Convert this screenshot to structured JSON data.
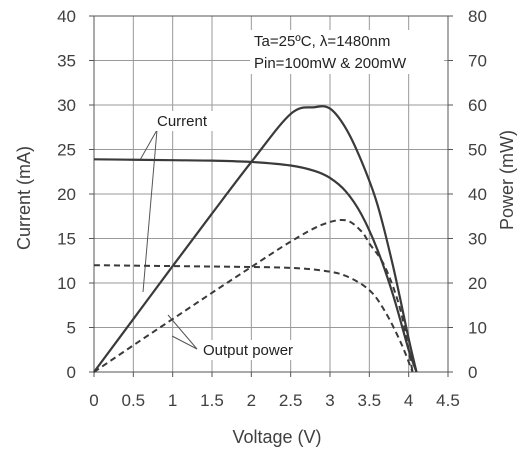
{
  "chart_data": {
    "type": "line",
    "xlabel": "Voltage (V)",
    "ylabel_left": "Current (mA)",
    "ylabel_right": "Power (mW)",
    "xlim": [
      0,
      4.5
    ],
    "ylim_left": [
      0,
      40
    ],
    "ylim_right": [
      0,
      80
    ],
    "x_ticks": [
      "0",
      "0.5",
      "1",
      "1.5",
      "2",
      "2.5",
      "3",
      "3.5",
      "4",
      "4.5"
    ],
    "y_left_ticks": [
      "0",
      "5",
      "10",
      "15",
      "20",
      "25",
      "30",
      "35",
      "40"
    ],
    "y_right_ticks": [
      "0",
      "10",
      "20",
      "30",
      "40",
      "50",
      "60",
      "70",
      "80"
    ],
    "grid": true,
    "annotation_conditions": [
      "Ta=25ºC, λ=1480nm",
      "Pin=100mW & 200mW"
    ],
    "label_current": "Current",
    "label_power": "Output power",
    "series": [
      {
        "axis": "left",
        "style": "solid",
        "x": [
          0,
          0.5,
          1,
          1.5,
          2,
          2.5,
          2.8,
          3.0,
          3.2,
          3.4,
          3.6,
          3.8,
          4.0,
          4.1
        ],
        "y": [
          23.9,
          23.85,
          23.8,
          23.75,
          23.6,
          23.2,
          22.6,
          21.8,
          20.3,
          17.7,
          13.8,
          8.7,
          2.5,
          0
        ]
      },
      {
        "axis": "right",
        "style": "solid",
        "x": [
          0,
          0.5,
          1,
          1.5,
          2,
          2.5,
          2.8,
          3.0,
          3.2,
          3.4,
          3.6,
          3.8,
          4.0,
          4.1
        ],
        "y": [
          0,
          11.9,
          23.8,
          35.6,
          47.2,
          58.0,
          59.5,
          59.2,
          54.8,
          47.4,
          37.8,
          23.9,
          7.5,
          0
        ]
      },
      {
        "axis": "left",
        "style": "dashed",
        "x": [
          0,
          0.5,
          1,
          1.5,
          2,
          2.5,
          2.9,
          3.2,
          3.5,
          3.7,
          3.9,
          4.05
        ],
        "y": [
          12,
          11.95,
          11.9,
          11.85,
          11.8,
          11.7,
          11.4,
          10.8,
          9.2,
          6.8,
          3.3,
          0
        ]
      },
      {
        "axis": "right",
        "style": "dashed",
        "x": [
          0,
          0.5,
          1,
          1.5,
          2,
          2.5,
          2.9,
          3.2,
          3.4,
          3.5,
          3.7,
          3.9,
          4.05
        ],
        "y": [
          0,
          6,
          11.9,
          17.8,
          23.6,
          29.3,
          33.1,
          34.1,
          31.6,
          28.9,
          23.6,
          13.6,
          0
        ]
      }
    ]
  }
}
